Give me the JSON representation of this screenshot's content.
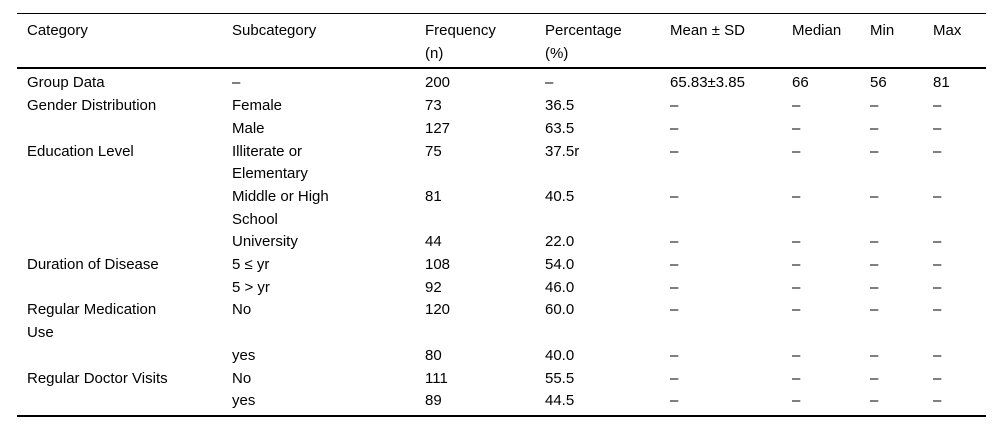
{
  "colors": {
    "text": "#000000",
    "rule": "#000000",
    "background": "#ffffff"
  },
  "table": {
    "columns": [
      {
        "key": "category",
        "label": "Category"
      },
      {
        "key": "subcategory",
        "label": "Subcategory"
      },
      {
        "key": "frequency",
        "label": "Frequency\n(n)"
      },
      {
        "key": "percentage",
        "label": "Percentage\n(%)"
      },
      {
        "key": "mean_sd",
        "label": "Mean ± SD"
      },
      {
        "key": "median",
        "label": "Median"
      },
      {
        "key": "min",
        "label": "Min"
      },
      {
        "key": "max",
        "label": "Max"
      }
    ],
    "rows": [
      {
        "category": "Group Data",
        "subcategory": "–",
        "frequency": "200",
        "percentage": "–",
        "mean_sd": "65.83±3.85",
        "median": "66",
        "min": "56",
        "max": "81"
      },
      {
        "category": "Gender Distribution",
        "subcategory": "Female",
        "frequency": "73",
        "percentage": "36.5",
        "mean_sd": "–",
        "median": "–",
        "min": "–",
        "max": "–"
      },
      {
        "category": "",
        "subcategory": "Male",
        "frequency": "127",
        "percentage": "63.5",
        "mean_sd": "–",
        "median": "–",
        "min": "–",
        "max": "–"
      },
      {
        "category": "Education Level",
        "subcategory": "Illiterate or\nElementary",
        "frequency": "75",
        "percentage": "37.5r",
        "mean_sd": "–",
        "median": "–",
        "min": "–",
        "max": "–"
      },
      {
        "category": "",
        "subcategory": "Middle or High\nSchool",
        "frequency": "81",
        "percentage": "40.5",
        "mean_sd": "–",
        "median": "–",
        "min": "–",
        "max": "–"
      },
      {
        "category": "",
        "subcategory": "University",
        "frequency": "44",
        "percentage": "22.0",
        "mean_sd": "–",
        "median": "–",
        "min": "–",
        "max": "–"
      },
      {
        "category": "Duration of Disease",
        "subcategory": "5 ≤ yr",
        "frequency": "108",
        "percentage": "54.0",
        "mean_sd": "–",
        "median": "–",
        "min": "–",
        "max": "–"
      },
      {
        "category": "",
        "subcategory": "5 > yr",
        "frequency": "92",
        "percentage": "46.0",
        "mean_sd": "–",
        "median": "–",
        "min": "–",
        "max": "–"
      },
      {
        "category": "Regular Medication\nUse",
        "subcategory": "No",
        "frequency": "120",
        "percentage": "60.0",
        "mean_sd": "–",
        "median": "–",
        "min": "–",
        "max": "–"
      },
      {
        "category": "",
        "subcategory": "yes",
        "frequency": "80",
        "percentage": "40.0",
        "mean_sd": "–",
        "median": "–",
        "min": "–",
        "max": "–"
      },
      {
        "category": "Regular Doctor Visits",
        "subcategory": "No",
        "frequency": "111",
        "percentage": "55.5",
        "mean_sd": "–",
        "median": "–",
        "min": "–",
        "max": "–"
      },
      {
        "category": "",
        "subcategory": "yes",
        "frequency": "89",
        "percentage": "44.5",
        "mean_sd": "–",
        "median": "–",
        "min": "–",
        "max": "–"
      }
    ]
  }
}
